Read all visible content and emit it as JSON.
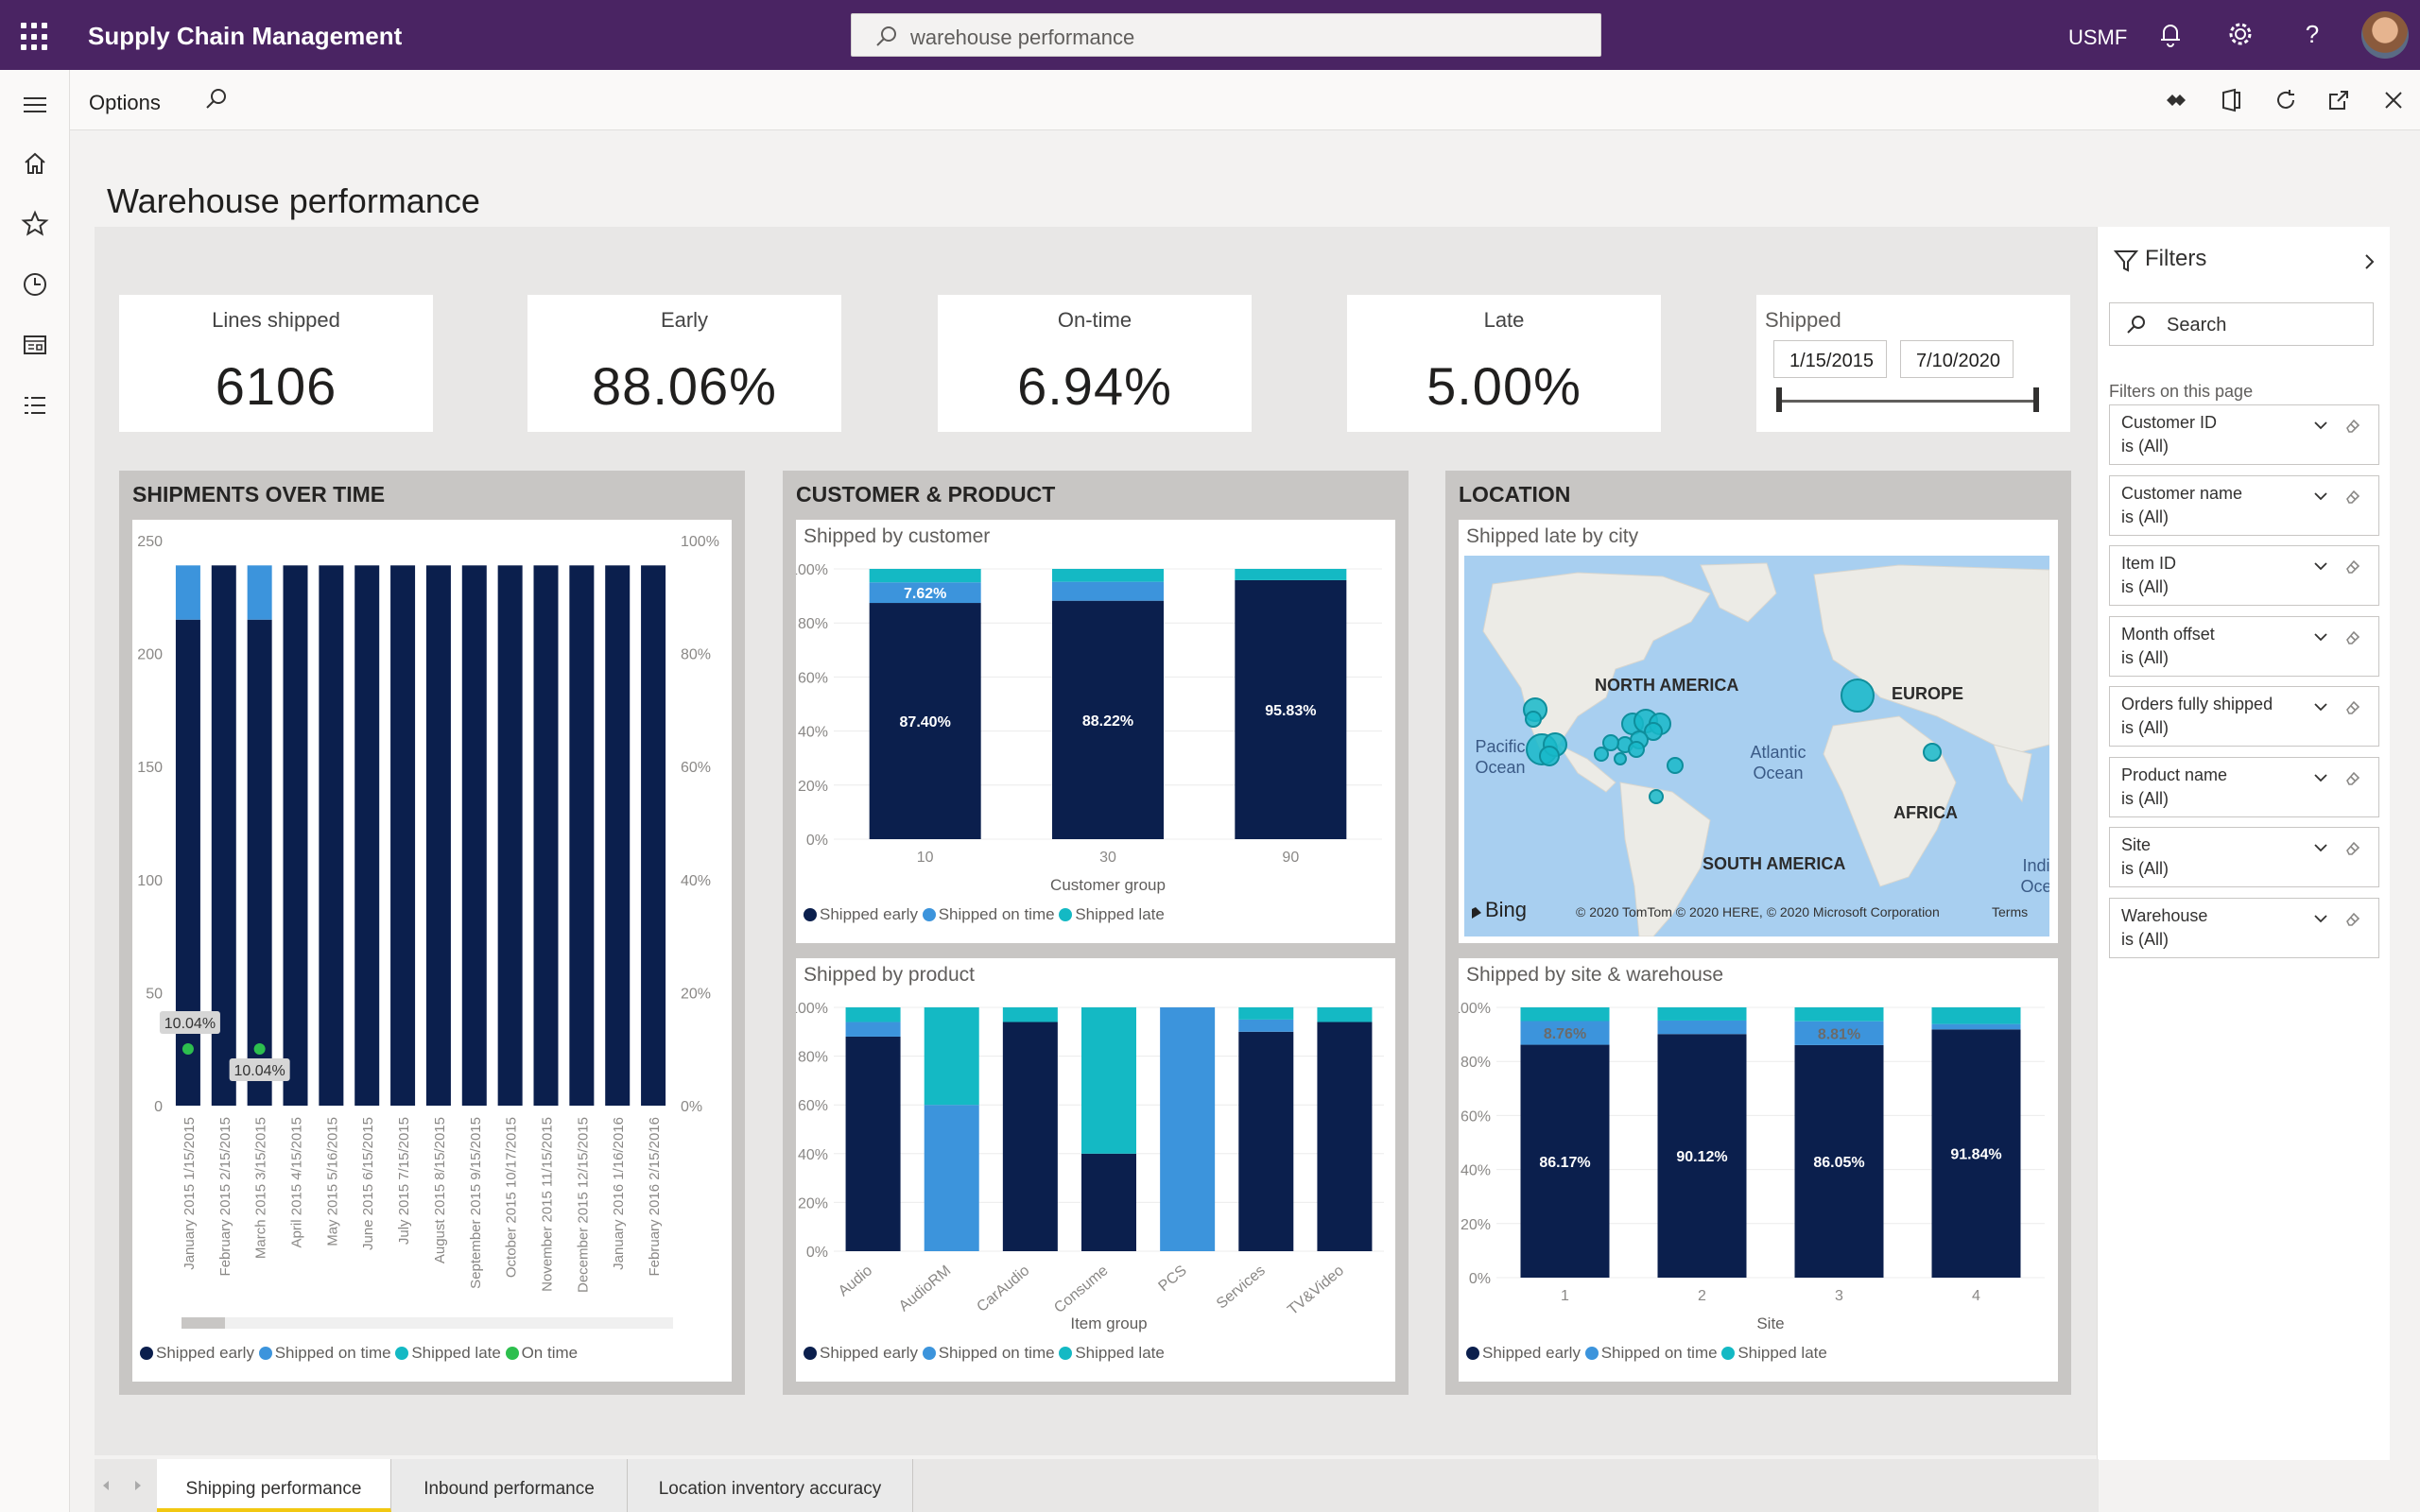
{
  "app": {
    "title": "Supply Chain Management",
    "search_value": "warehouse performance",
    "company": "USMF"
  },
  "actionbar": {
    "options": "Options"
  },
  "page": {
    "title": "Warehouse performance"
  },
  "kpis": [
    {
      "label": "Lines shipped",
      "value": "6106"
    },
    {
      "label": "Early",
      "value": "88.06%"
    },
    {
      "label": "On-time",
      "value": "6.94%"
    },
    {
      "label": "Late",
      "value": "5.00%"
    }
  ],
  "slicer": {
    "label": "Shipped",
    "start": "1/15/2015",
    "end": "7/10/2020"
  },
  "panels": {
    "time": "SHIPMENTS OVER TIME",
    "customer": "CUSTOMER & PRODUCT",
    "location": "LOCATION"
  },
  "cards": {
    "by_customer": "Shipped by customer",
    "by_product": "Shipped by product",
    "late_by_city": "Shipped late by city",
    "by_site": "Shipped by site & warehouse"
  },
  "legend": {
    "early": "Shipped early",
    "on_time": "Shipped on time",
    "late": "Shipped late",
    "on_time_line": "On time"
  },
  "colors": {
    "early": "#0b1f4d",
    "on_time": "#3c94dc",
    "late": "#14b9c4",
    "on_time_line": "#2dbf4e",
    "topbar": "#4a2463"
  },
  "map": {
    "labels": {
      "north_america": "NORTH AMERICA",
      "europe": "EUROPE",
      "africa": "AFRICA",
      "south_america": "SOUTH AMERICA",
      "pacific": "Pacific",
      "pacific2": "Ocean",
      "atlantic": "Atlantic",
      "atlantic2": "Ocean",
      "india": "Indi",
      "india2": "Oce"
    },
    "bing": "Bing",
    "copyright": "© 2020 TomTom © 2020 HERE, © 2020 Microsoft Corporation",
    "terms": "Terms"
  },
  "filters": {
    "title": "Filters",
    "search_placeholder": "Search",
    "on_page": "Filters on this page",
    "items": [
      {
        "name": "Customer ID",
        "value": "is (All)"
      },
      {
        "name": "Customer name",
        "value": "is (All)"
      },
      {
        "name": "Item ID",
        "value": "is (All)"
      },
      {
        "name": "Month offset",
        "value": "is (All)"
      },
      {
        "name": "Orders fully shipped",
        "value": "is (All)"
      },
      {
        "name": "Product name",
        "value": "is (All)"
      },
      {
        "name": "Site",
        "value": "is (All)"
      },
      {
        "name": "Warehouse",
        "value": "is (All)"
      }
    ]
  },
  "tabs": [
    {
      "label": "Shipping performance",
      "active": true
    },
    {
      "label": "Inbound performance",
      "active": false
    },
    {
      "label": "Location inventory accuracy",
      "active": false
    }
  ],
  "chart_data": [
    {
      "id": "time",
      "type": "bar",
      "title": "SHIPMENTS OVER TIME",
      "categories": [
        "January 2015 1/15/2015",
        "February 2015 2/15/2015",
        "March 2015 3/15/2015",
        "April 2015 4/15/2015",
        "May 2015 5/16/2015",
        "June 2015 6/15/2015",
        "July 2015 7/15/2015",
        "August 2015 8/15/2015",
        "September 2015 9/15/2015",
        "October 2015 10/17/2015",
        "November 2015 11/15/2015",
        "December 2015 12/15/2015",
        "January 2016 1/16/2016",
        "February 2016 2/15/2016"
      ],
      "series": [
        {
          "name": "Shipped early",
          "values": [
            215,
            239,
            215,
            239,
            239,
            239,
            239,
            239,
            239,
            239,
            239,
            239,
            239,
            239
          ]
        },
        {
          "name": "Shipped on time",
          "values": [
            24,
            0,
            24,
            0,
            0,
            0,
            0,
            0,
            0,
            0,
            0,
            0,
            0,
            0
          ]
        },
        {
          "name": "Shipped late",
          "values": [
            0,
            0,
            0,
            0,
            0,
            0,
            0,
            0,
            0,
            0,
            0,
            0,
            0,
            0
          ]
        }
      ],
      "line": {
        "name": "On time",
        "points": [
          {
            "index": 0,
            "value": 10.04,
            "label": "10.04%"
          },
          {
            "index": 2,
            "value": 10.04,
            "label": "10.04%"
          }
        ]
      },
      "ylim": [
        0,
        250
      ],
      "yticks": [
        0,
        50,
        100,
        150,
        200,
        250
      ],
      "y2lim": [
        0,
        100
      ],
      "y2ticks": [
        "0%",
        "20%",
        "40%",
        "60%",
        "80%",
        "100%"
      ]
    },
    {
      "id": "customer",
      "type": "bar",
      "title": "Shipped by customer",
      "xlabel": "Customer group",
      "categories": [
        "10",
        "30",
        "90"
      ],
      "series": [
        {
          "name": "Shipped early",
          "values": [
            87.4,
            88.22,
            95.83
          ],
          "labels": [
            "87.40%",
            "88.22%",
            "95.83%"
          ]
        },
        {
          "name": "Shipped on time",
          "values": [
            7.62,
            7.0,
            0
          ],
          "labels": [
            "7.62%",
            "",
            ""
          ]
        },
        {
          "name": "Shipped late",
          "values": [
            4.98,
            4.78,
            4.17
          ],
          "labels": [
            "",
            "",
            ""
          ]
        }
      ],
      "ylim": [
        0,
        100
      ],
      "yticks": [
        "0%",
        "20%",
        "40%",
        "60%",
        "80%",
        "100%"
      ]
    },
    {
      "id": "product",
      "type": "bar",
      "title": "Shipped by product",
      "xlabel": "Item group",
      "categories": [
        "Audio",
        "AudioRM",
        "CarAudio",
        "Consume",
        "PCS",
        "Services",
        "TV&Video"
      ],
      "series": [
        {
          "name": "Shipped early",
          "values": [
            88,
            0,
            94,
            40,
            0,
            90,
            94
          ]
        },
        {
          "name": "Shipped on time",
          "values": [
            6,
            60,
            0,
            0,
            100,
            5,
            0
          ]
        },
        {
          "name": "Shipped late",
          "values": [
            6,
            40,
            6,
            60,
            0,
            5,
            6
          ]
        }
      ],
      "ylim": [
        0,
        100
      ],
      "yticks": [
        "0%",
        "20%",
        "40%",
        "60%",
        "80%",
        "100%"
      ]
    },
    {
      "id": "site",
      "type": "bar",
      "title": "Shipped by site & warehouse",
      "xlabel": "Site",
      "categories": [
        "1",
        "2",
        "3",
        "4"
      ],
      "series": [
        {
          "name": "Shipped early",
          "values": [
            86.17,
            90.12,
            86.05,
            91.84
          ],
          "labels": [
            "86.17%",
            "90.12%",
            "86.05%",
            "91.84%"
          ]
        },
        {
          "name": "Shipped on time",
          "values": [
            8.76,
            5.0,
            8.81,
            2.0
          ],
          "labels": [
            "8.76%",
            "",
            "8.81%",
            ""
          ]
        },
        {
          "name": "Shipped late",
          "values": [
            5.07,
            4.88,
            5.14,
            6.16
          ],
          "labels": [
            "",
            "",
            "",
            ""
          ]
        }
      ],
      "ylim": [
        0,
        100
      ],
      "yticks": [
        "0%",
        "20%",
        "40%",
        "60%",
        "80%",
        "100%"
      ]
    }
  ]
}
